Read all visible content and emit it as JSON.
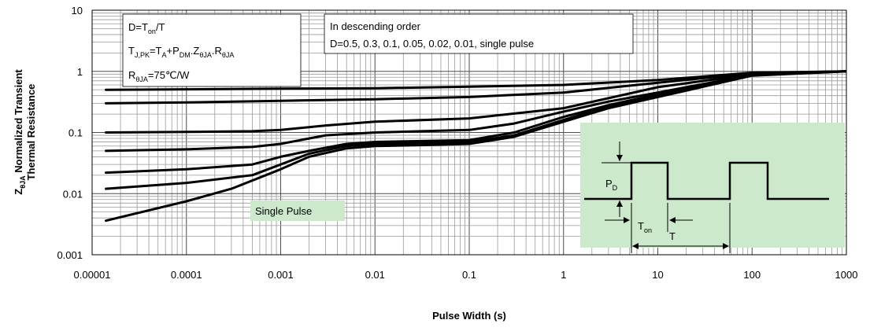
{
  "chart_data": {
    "type": "line",
    "title": "",
    "xlabel": "Pulse Width (s)",
    "ylabel_line1": "Normalized Transient",
    "ylabel_line2": "Thermal Resistance",
    "ylabel_symbol": "Z",
    "ylabel_symbol_sub": "θJA",
    "x_scale": "log",
    "y_scale": "log",
    "xlim": [
      1e-05,
      1000
    ],
    "ylim": [
      0.001,
      10
    ],
    "grid": true,
    "x_tick_labels": [
      "0.00001",
      "0.0001",
      "0.001",
      "0.01",
      "0.1",
      "1",
      "10",
      "100",
      "1000"
    ],
    "y_tick_labels": [
      "0.001",
      "0.01",
      "0.1",
      "1",
      "10"
    ],
    "series": [
      {
        "x": [
          1.4e-05,
          0.001,
          0.01,
          0.1,
          1,
          10,
          100,
          1000
        ],
        "y": [
          0.5,
          0.52,
          0.53,
          0.56,
          0.6,
          0.72,
          0.95,
          1.0
        ]
      },
      {
        "x": [
          1.4e-05,
          0.0001,
          0.001,
          0.01,
          0.1,
          1,
          10,
          100,
          1000
        ],
        "y": [
          0.3,
          0.31,
          0.33,
          0.35,
          0.38,
          0.45,
          0.65,
          0.93,
          1.0
        ]
      },
      {
        "x": [
          1.4e-05,
          0.0001,
          0.0005,
          0.001,
          0.003,
          0.01,
          0.1,
          1,
          10,
          100,
          1000
        ],
        "y": [
          0.1,
          0.102,
          0.105,
          0.11,
          0.13,
          0.15,
          0.17,
          0.25,
          0.55,
          0.9,
          1.0
        ]
      },
      {
        "x": [
          1.4e-05,
          0.0001,
          0.0005,
          0.001,
          0.003,
          0.01,
          0.1,
          0.3,
          1,
          3,
          10,
          100,
          1000
        ],
        "y": [
          0.05,
          0.053,
          0.058,
          0.065,
          0.09,
          0.1,
          0.11,
          0.14,
          0.22,
          0.32,
          0.45,
          0.88,
          1.0
        ]
      },
      {
        "x": [
          1.4e-05,
          0.0001,
          0.0005,
          0.001,
          0.002,
          0.005,
          0.01,
          0.1,
          0.3,
          1,
          3,
          10,
          100,
          1000
        ],
        "y": [
          0.022,
          0.025,
          0.03,
          0.04,
          0.05,
          0.065,
          0.07,
          0.075,
          0.1,
          0.18,
          0.28,
          0.42,
          0.87,
          1.0
        ]
      },
      {
        "x": [
          1.4e-05,
          0.0001,
          0.0005,
          0.001,
          0.002,
          0.005,
          0.01,
          0.1,
          0.3,
          1,
          3,
          10,
          100,
          1000
        ],
        "y": [
          0.012,
          0.015,
          0.02,
          0.03,
          0.045,
          0.06,
          0.065,
          0.07,
          0.09,
          0.16,
          0.27,
          0.4,
          0.86,
          1.0
        ]
      },
      {
        "x": [
          1.4e-05,
          0.0001,
          0.0003,
          0.001,
          0.002,
          0.005,
          0.01,
          0.03,
          0.1,
          0.3,
          1,
          3,
          10,
          100,
          1000
        ],
        "y": [
          0.0036,
          0.0075,
          0.012,
          0.025,
          0.04,
          0.055,
          0.06,
          0.062,
          0.065,
          0.085,
          0.15,
          0.25,
          0.38,
          0.85,
          1.0
        ]
      }
    ],
    "annotations": {
      "formula_box": {
        "line1": {
          "main": "D=T",
          "sub": "on",
          "tail": "/T"
        },
        "line2": [
          {
            "t": "T",
            "s": false
          },
          {
            "t": "J,PK",
            "s": true
          },
          {
            "t": "=T",
            "s": false
          },
          {
            "t": "A",
            "s": true
          },
          {
            "t": "+P",
            "s": false
          },
          {
            "t": "DM",
            "s": true
          },
          {
            "t": ".Z",
            "s": false
          },
          {
            "t": "θJA",
            "s": true
          },
          {
            "t": ".R",
            "s": false
          },
          {
            "t": "θJA",
            "s": true
          }
        ],
        "line3": {
          "main": "R",
          "sub": "θJA",
          "tail": "=75℃/W"
        }
      },
      "order_box": {
        "line1": "In descending order",
        "line2": "D=0.5, 0.3, 0.1, 0.05, 0.02, 0.01, single pulse"
      },
      "single_pulse_label": "Single Pulse",
      "inset": {
        "pd_label": "P",
        "pd_sub": "D",
        "ton_label": "T",
        "ton_sub": "on",
        "t_label": "T",
        "background": "#cce9cc"
      }
    },
    "colors": {
      "curve": "#000000",
      "major_grid": "#4d4d4d",
      "minor_grid": "#9a9a9a",
      "inset_fill": "#cce9cc",
      "label_fill": "#cce9cc"
    }
  }
}
